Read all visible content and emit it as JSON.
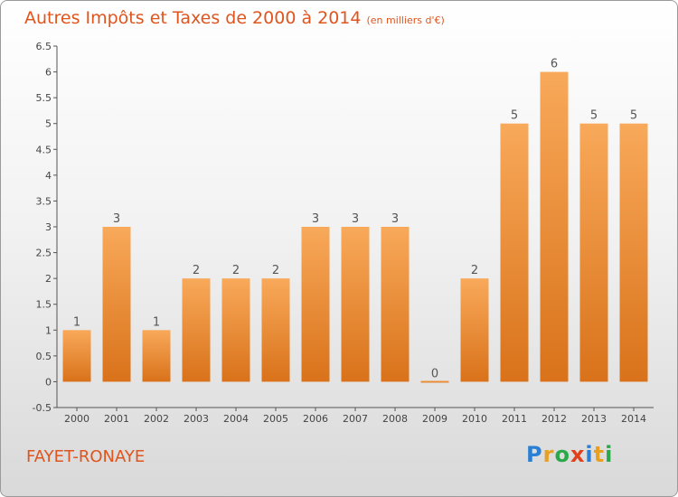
{
  "title": "Autres Impôts et Taxes de 2000 à 2014",
  "subtitle": "(en milliers d'€)",
  "commune": "FAYET-RONAYE",
  "logo": {
    "letters": [
      "P",
      "r",
      "o",
      "x",
      "i",
      "t",
      "i"
    ],
    "colors": [
      "#2a7fd4",
      "#e8a020",
      "#2aa84a",
      "#e0401a",
      "#2a7fd4",
      "#e8a020",
      "#2aa84a"
    ]
  },
  "colors": {
    "bar_light": "#f8a95a",
    "bar_dark": "#d9721a",
    "title": "#e0541d"
  },
  "chart_data": {
    "type": "bar",
    "categories": [
      "2000",
      "2001",
      "2002",
      "2003",
      "2004",
      "2005",
      "2006",
      "2007",
      "2008",
      "2009",
      "2010",
      "2011",
      "2012",
      "2013",
      "2014"
    ],
    "values": [
      1,
      3,
      1,
      2,
      2,
      2,
      3,
      3,
      3,
      0,
      2,
      5,
      6,
      5,
      5
    ],
    "labels": [
      "1",
      "3",
      "1",
      "2",
      "2",
      "2",
      "3",
      "3",
      "3",
      "0",
      "2",
      "5",
      "6",
      "5",
      "5"
    ],
    "yticks": [
      "-0.5",
      "0",
      "0.5",
      "1",
      "1.5",
      "2",
      "2.5",
      "3",
      "3.5",
      "4",
      "4.5",
      "5",
      "5.5",
      "6",
      "6.5"
    ],
    "ylim": [
      -0.5,
      6.5
    ],
    "grid": false
  }
}
